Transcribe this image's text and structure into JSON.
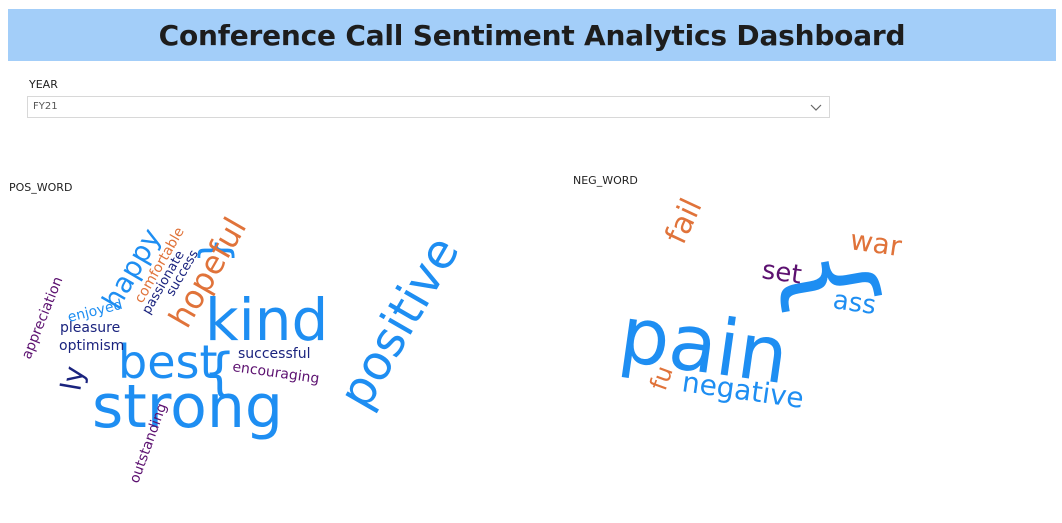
{
  "header": {
    "title": "Conference Call Sentiment Analytics Dashboard"
  },
  "filter": {
    "label": "YEAR",
    "value": "FY21"
  },
  "positive_cloud": {
    "label": "POS_WORD",
    "words": [
      {
        "text": "strong",
        "color": "#1e8ef2"
      },
      {
        "text": "kind",
        "color": "#1e8ef2"
      },
      {
        "text": "best",
        "color": "#1e8ef2"
      },
      {
        "text": "positive",
        "color": "#1e8ef2"
      },
      {
        "text": "{",
        "color": "#1e8ef2"
      },
      {
        "text": "}",
        "color": "#1e8ef2"
      },
      {
        "text": "hopeful",
        "color": "#e0733a"
      },
      {
        "text": "happy",
        "color": "#1e8ef2"
      },
      {
        "text": "ly",
        "color": "#1a237e"
      },
      {
        "text": "comfortable",
        "color": "#e0733a"
      },
      {
        "text": "passionate",
        "color": "#1a237e"
      },
      {
        "text": "success",
        "color": "#1a237e"
      },
      {
        "text": "enjoyed",
        "color": "#1e8ef2"
      },
      {
        "text": "pleasure",
        "color": "#1a237e"
      },
      {
        "text": "optimism",
        "color": "#1a237e"
      },
      {
        "text": "appreciation",
        "color": "#5c1170"
      },
      {
        "text": "successful",
        "color": "#1a237e"
      },
      {
        "text": "encouraging",
        "color": "#5c1170"
      },
      {
        "text": "outstanding",
        "color": "#5c1170"
      }
    ]
  },
  "negative_cloud": {
    "label": "NEG_WORD",
    "words": [
      {
        "text": "pain",
        "color": "#1e8ef2"
      },
      {
        "text": "{",
        "color": "#1e8ef2"
      },
      {
        "text": "fail",
        "color": "#e0733a"
      },
      {
        "text": "war",
        "color": "#e0733a"
      },
      {
        "text": "set",
        "color": "#5c1170"
      },
      {
        "text": "ass",
        "color": "#1e8ef2"
      },
      {
        "text": "fu",
        "color": "#e0733a"
      },
      {
        "text": "negative",
        "color": "#1e8ef2"
      }
    ]
  }
}
